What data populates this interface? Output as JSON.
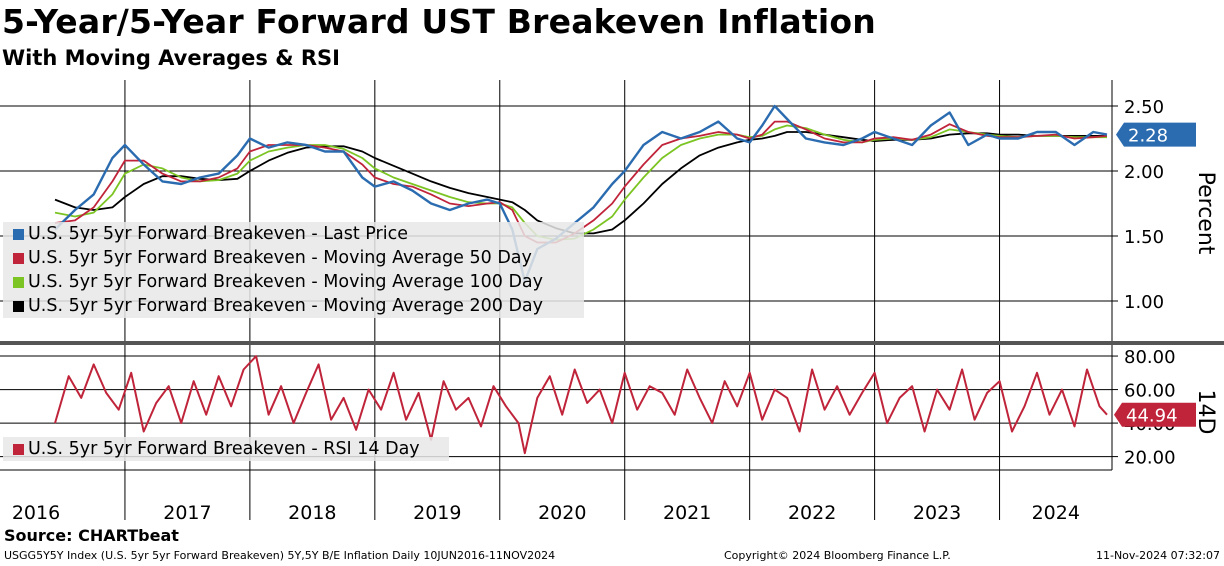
{
  "title": "5-Year/5-Year Forward UST Breakeven Inflation",
  "subtitle": "With Moving Averages & RSI",
  "source": "Source: CHARTbeat",
  "footer": {
    "left": "USGG5Y5Y Index (U.S. 5yr 5yr Forward Breakeven) 5Y,5Y B/E Inflation  Daily 10JUN2016-11NOV2024",
    "center": "Copyright© 2024 Bloomberg Finance L.P.",
    "right": "11-Nov-2024 07:32:07"
  },
  "colors": {
    "last_price": "#2b6cb0",
    "ma50": "#c0243a",
    "ma100": "#7cc423",
    "ma200": "#000000",
    "rsi": "#c0243a",
    "grid": "#000000"
  },
  "chart_data": [
    {
      "type": "line",
      "panel": "price",
      "ylabel": "Percent",
      "ylim": [
        0.7,
        2.7
      ],
      "yticks": [
        "2.50",
        "2.00",
        "1.50",
        "1.00"
      ],
      "ytick_values": [
        2.5,
        2.0,
        1.5,
        1.0
      ],
      "last_value_label": "2.28",
      "x": [
        2016.44,
        2016.6,
        2016.75,
        2016.9,
        2017.0,
        2017.15,
        2017.3,
        2017.45,
        2017.6,
        2017.75,
        2017.9,
        2018.0,
        2018.15,
        2018.3,
        2018.45,
        2018.6,
        2018.75,
        2018.9,
        2019.0,
        2019.15,
        2019.3,
        2019.45,
        2019.6,
        2019.75,
        2019.9,
        2020.0,
        2020.1,
        2020.2,
        2020.3,
        2020.45,
        2020.6,
        2020.75,
        2020.9,
        2021.0,
        2021.15,
        2021.3,
        2021.45,
        2021.6,
        2021.75,
        2021.9,
        2022.0,
        2022.1,
        2022.2,
        2022.3,
        2022.45,
        2022.6,
        2022.75,
        2022.9,
        2023.0,
        2023.15,
        2023.3,
        2023.45,
        2023.6,
        2023.75,
        2023.9,
        2024.0,
        2024.15,
        2024.3,
        2024.45,
        2024.6,
        2024.75,
        2024.86
      ],
      "series": [
        {
          "name": "U.S. 5yr 5yr Forward Breakeven - Last Price",
          "values": [
            1.55,
            1.7,
            1.82,
            2.1,
            2.2,
            2.05,
            1.92,
            1.9,
            1.95,
            1.98,
            2.12,
            2.25,
            2.18,
            2.22,
            2.2,
            2.15,
            2.15,
            1.95,
            1.88,
            1.92,
            1.85,
            1.75,
            1.7,
            1.75,
            1.78,
            1.75,
            1.55,
            1.15,
            1.4,
            1.48,
            1.6,
            1.72,
            1.9,
            2.0,
            2.2,
            2.3,
            2.25,
            2.3,
            2.38,
            2.25,
            2.22,
            2.35,
            2.5,
            2.4,
            2.25,
            2.22,
            2.2,
            2.25,
            2.3,
            2.25,
            2.2,
            2.35,
            2.45,
            2.2,
            2.28,
            2.25,
            2.25,
            2.3,
            2.3,
            2.2,
            2.3,
            2.28
          ]
        },
        {
          "name": "U.S. 5yr 5yr Forward Breakeven - Moving Average 50 Day",
          "values": [
            1.6,
            1.62,
            1.72,
            1.92,
            2.08,
            2.08,
            1.98,
            1.92,
            1.92,
            1.95,
            2.02,
            2.15,
            2.2,
            2.2,
            2.2,
            2.18,
            2.15,
            2.05,
            1.95,
            1.9,
            1.88,
            1.82,
            1.75,
            1.73,
            1.75,
            1.76,
            1.7,
            1.5,
            1.45,
            1.45,
            1.52,
            1.62,
            1.75,
            1.88,
            2.05,
            2.2,
            2.25,
            2.27,
            2.3,
            2.28,
            2.25,
            2.28,
            2.38,
            2.38,
            2.32,
            2.25,
            2.22,
            2.22,
            2.25,
            2.26,
            2.24,
            2.28,
            2.36,
            2.3,
            2.27,
            2.26,
            2.26,
            2.27,
            2.28,
            2.25,
            2.26,
            2.27
          ]
        },
        {
          "name": "U.S. 5yr 5yr Forward Breakeven - Moving Average 100 Day",
          "values": [
            1.68,
            1.65,
            1.68,
            1.82,
            1.98,
            2.05,
            2.02,
            1.95,
            1.92,
            1.93,
            1.98,
            2.08,
            2.15,
            2.18,
            2.2,
            2.2,
            2.17,
            2.1,
            2.02,
            1.95,
            1.9,
            1.85,
            1.8,
            1.76,
            1.75,
            1.75,
            1.72,
            1.6,
            1.5,
            1.47,
            1.48,
            1.55,
            1.65,
            1.78,
            1.95,
            2.1,
            2.2,
            2.25,
            2.28,
            2.28,
            2.26,
            2.27,
            2.32,
            2.35,
            2.33,
            2.28,
            2.24,
            2.22,
            2.24,
            2.25,
            2.24,
            2.26,
            2.32,
            2.3,
            2.28,
            2.27,
            2.26,
            2.27,
            2.27,
            2.26,
            2.26,
            2.26
          ]
        },
        {
          "name": "U.S. 5yr 5yr Forward Breakeven - Moving Average 200 Day",
          "values": [
            1.78,
            1.72,
            1.7,
            1.72,
            1.8,
            1.9,
            1.96,
            1.96,
            1.94,
            1.93,
            1.94,
            2.0,
            2.08,
            2.14,
            2.18,
            2.19,
            2.19,
            2.15,
            2.1,
            2.04,
            1.98,
            1.92,
            1.87,
            1.83,
            1.8,
            1.78,
            1.76,
            1.7,
            1.62,
            1.56,
            1.52,
            1.52,
            1.55,
            1.62,
            1.75,
            1.9,
            2.02,
            2.12,
            2.18,
            2.22,
            2.24,
            2.25,
            2.27,
            2.3,
            2.3,
            2.28,
            2.26,
            2.24,
            2.23,
            2.24,
            2.24,
            2.25,
            2.28,
            2.29,
            2.29,
            2.28,
            2.28,
            2.27,
            2.27,
            2.27,
            2.27,
            2.27
          ]
        }
      ]
    },
    {
      "type": "line",
      "panel": "rsi",
      "ylabel": "14D",
      "ylim": [
        12,
        86
      ],
      "yticks": [
        "80.00",
        "60.00",
        "40.00",
        "20.00"
      ],
      "ytick_values": [
        80,
        60,
        40,
        20
      ],
      "last_value_label": "44.94",
      "x": [
        2016.44,
        2016.55,
        2016.65,
        2016.75,
        2016.85,
        2016.95,
        2017.05,
        2017.15,
        2017.25,
        2017.35,
        2017.45,
        2017.55,
        2017.65,
        2017.75,
        2017.85,
        2017.95,
        2018.05,
        2018.15,
        2018.25,
        2018.35,
        2018.45,
        2018.55,
        2018.65,
        2018.75,
        2018.85,
        2018.95,
        2019.05,
        2019.15,
        2019.25,
        2019.35,
        2019.45,
        2019.55,
        2019.65,
        2019.75,
        2019.85,
        2019.95,
        2020.05,
        2020.15,
        2020.2,
        2020.3,
        2020.4,
        2020.5,
        2020.6,
        2020.7,
        2020.8,
        2020.9,
        2021.0,
        2021.1,
        2021.2,
        2021.3,
        2021.4,
        2021.5,
        2021.6,
        2021.7,
        2021.8,
        2021.9,
        2022.0,
        2022.1,
        2022.2,
        2022.3,
        2022.4,
        2022.5,
        2022.6,
        2022.7,
        2022.8,
        2022.9,
        2023.0,
        2023.1,
        2023.2,
        2023.3,
        2023.4,
        2023.5,
        2023.6,
        2023.7,
        2023.8,
        2023.9,
        2024.0,
        2024.1,
        2024.2,
        2024.3,
        2024.4,
        2024.5,
        2024.6,
        2024.7,
        2024.8,
        2024.86
      ],
      "series": [
        {
          "name": "U.S. 5yr 5yr Forward Breakeven - RSI 14 Day",
          "values": [
            40,
            68,
            55,
            75,
            58,
            48,
            70,
            35,
            52,
            62,
            40,
            65,
            45,
            68,
            50,
            72,
            80,
            45,
            62,
            40,
            58,
            75,
            42,
            55,
            36,
            60,
            48,
            70,
            42,
            58,
            30,
            65,
            48,
            55,
            38,
            62,
            50,
            40,
            22,
            55,
            68,
            45,
            72,
            52,
            60,
            40,
            70,
            48,
            62,
            58,
            45,
            72,
            55,
            40,
            65,
            50,
            70,
            42,
            60,
            55,
            35,
            72,
            48,
            62,
            45,
            58,
            70,
            40,
            55,
            62,
            35,
            60,
            48,
            72,
            42,
            58,
            65,
            35,
            50,
            70,
            45,
            60,
            38,
            72,
            50,
            45
          ]
        }
      ]
    }
  ],
  "x_axis": {
    "labels": [
      "2016",
      "2017",
      "2018",
      "2019",
      "2020",
      "2021",
      "2022",
      "2023",
      "2024"
    ]
  }
}
